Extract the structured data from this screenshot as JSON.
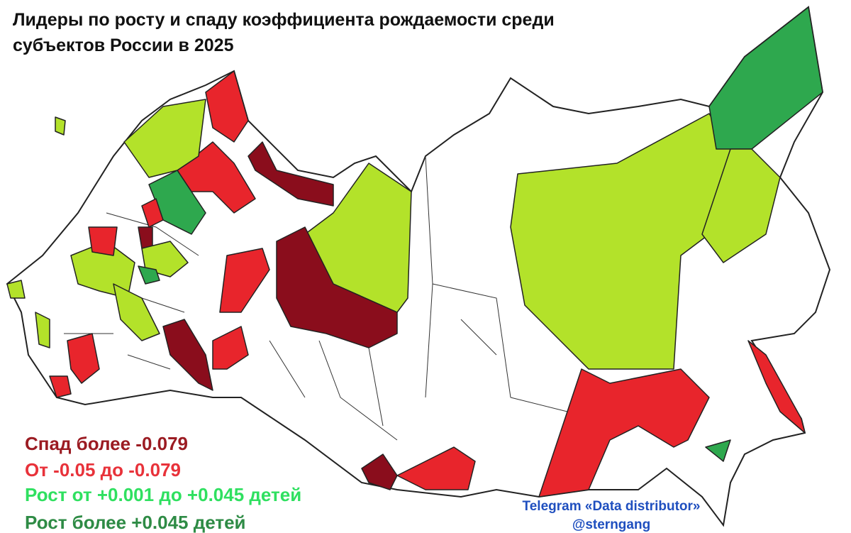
{
  "title": [
    "Лидеры по росту и спаду коэффициента рождаемости среди",
    "субъектов России в 2025"
  ],
  "legend": [
    {
      "label": "Спад более -0.079",
      "color": "#9b1b22"
    },
    {
      "label": "От -0.05 до -0.079",
      "color": "#e8323a"
    },
    {
      "label": "Рост от +0.001 до +0.045 детей",
      "color": "#2fe060"
    },
    {
      "label": "Рост более +0.045 детей",
      "color": "#2e8b45"
    }
  ],
  "credit": [
    "Telegram «Data distributor»",
    "@sterngang"
  ]
}
